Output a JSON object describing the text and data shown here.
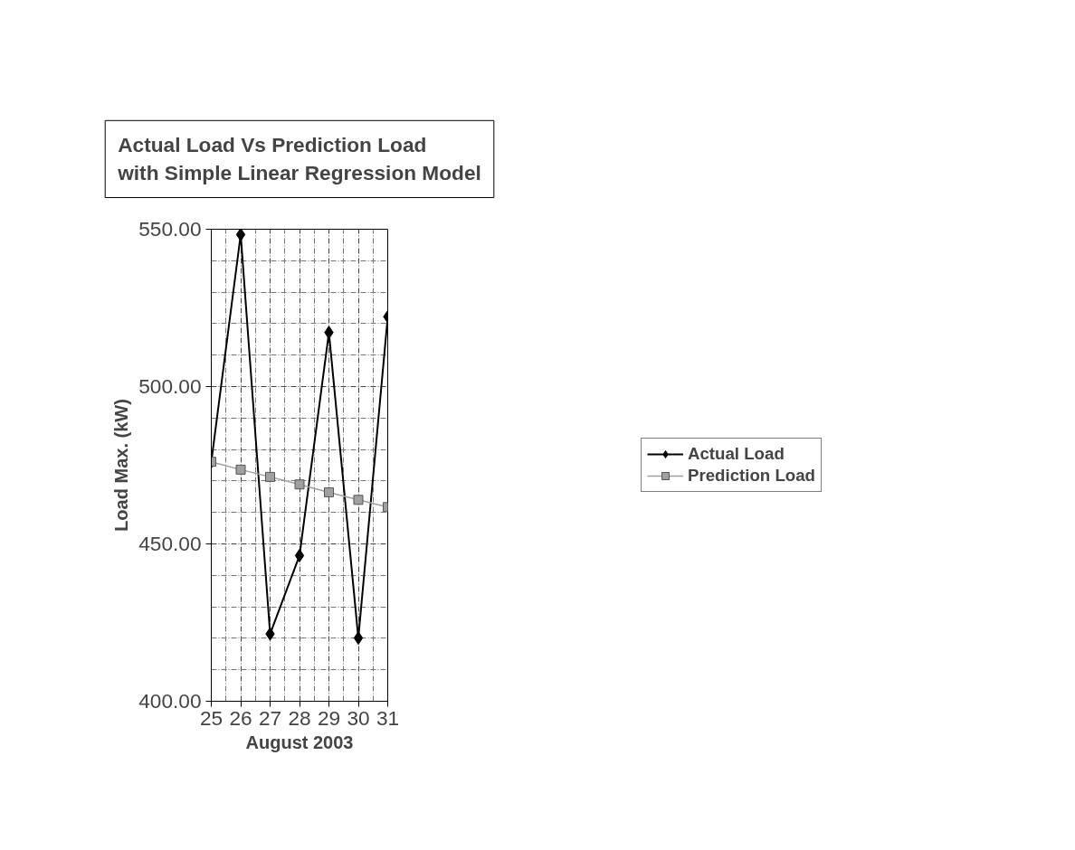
{
  "chart_data": {
    "type": "line",
    "title": "Actual Load Vs Prediction Load\nwith Simple Linear Regression Model",
    "xlabel": "August 2003",
    "ylabel": "Load Max. (kW)",
    "x": [
      25,
      26,
      27,
      28,
      29,
      30,
      31
    ],
    "series": [
      {
        "name": "Actual Load",
        "color": "#000000",
        "marker": "diamond",
        "values": [
          476.1,
          548.3,
          421.4,
          446.3,
          517.2,
          420.1,
          522.2
        ]
      },
      {
        "name": "Prediction Load",
        "color": "#a0a0a0",
        "marker": "square",
        "values": [
          476.1,
          473.6,
          471.3,
          468.9,
          466.4,
          464.0,
          461.7
        ]
      }
    ],
    "xlim": [
      25,
      31
    ],
    "xticks": [
      25,
      26,
      27,
      28,
      29,
      30,
      31
    ],
    "ylim": [
      400,
      550
    ],
    "yticks": [
      {
        "value": 400,
        "label": "400.00"
      },
      {
        "value": 450,
        "label": "450.00"
      },
      {
        "value": 500,
        "label": "500.00"
      },
      {
        "value": 550,
        "label": "550.00"
      }
    ],
    "grid": true,
    "legend": "right",
    "line_style": "solid"
  }
}
